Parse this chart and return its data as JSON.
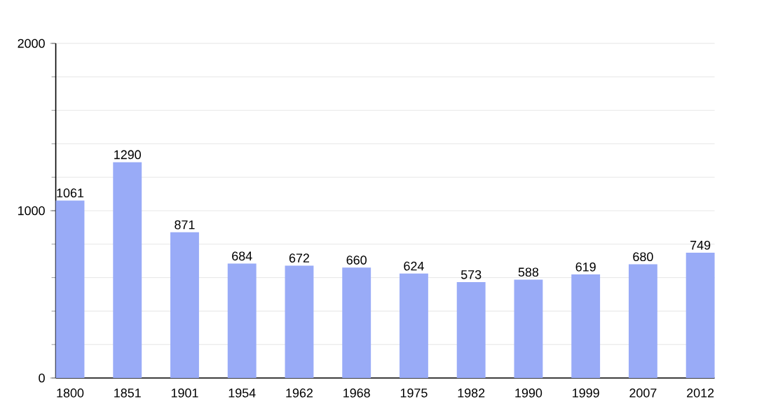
{
  "chart_data": {
    "type": "bar",
    "categories": [
      "1800",
      "1851",
      "1901",
      "1954",
      "1962",
      "1968",
      "1975",
      "1982",
      "1990",
      "1999",
      "2007",
      "2012"
    ],
    "values": [
      1061,
      1290,
      871,
      684,
      672,
      660,
      624,
      573,
      588,
      619,
      680,
      749
    ],
    "color": "#99abf7",
    "ylim": [
      0,
      2000
    ],
    "yticks": [
      0,
      {
        "value": 200,
        "label": null
      },
      {
        "value": 400,
        "label": null
      },
      {
        "value": 600,
        "label": null
      },
      {
        "value": 800,
        "label": null
      },
      1000,
      {
        "value": 1200,
        "label": null
      },
      {
        "value": 1400,
        "label": null
      },
      {
        "value": 1600,
        "label": null
      },
      {
        "value": 1800,
        "label": null
      },
      2000
    ],
    "grid": true,
    "data_labels": true
  }
}
